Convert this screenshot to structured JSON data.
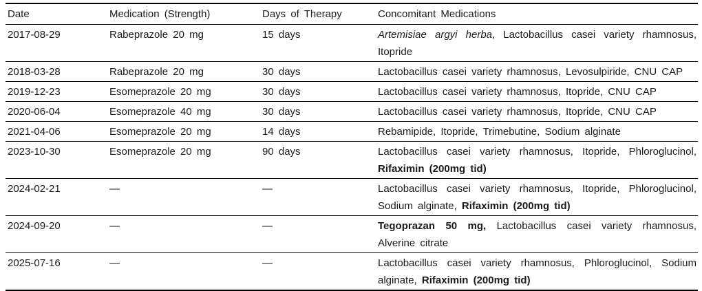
{
  "colors": {
    "text": "#1a1a1a",
    "rule": "#000000",
    "background": "#ffffff"
  },
  "table": {
    "empty_marker": "—",
    "columns": [
      {
        "key": "date",
        "label": "Date"
      },
      {
        "key": "medication",
        "label": "Medication (Strength)"
      },
      {
        "key": "days",
        "label": "Days of Therapy"
      },
      {
        "key": "concomitant",
        "label": "Concomitant Medications"
      }
    ],
    "rows": [
      {
        "date": "2017-08-29",
        "medication": "Rabeprazole 20 mg",
        "days": "15 days",
        "concomitant": [
          {
            "justify": true,
            "segments": [
              {
                "text": "Artemisiae argyi herba",
                "style": "italic"
              },
              {
                "text": ", Lactobacillus casei variety rhamnosus,",
                "style": "normal"
              }
            ]
          },
          {
            "justify": false,
            "segments": [
              {
                "text": "Itopride",
                "style": "normal"
              }
            ]
          }
        ]
      },
      {
        "date": "2018-03-28",
        "medication": "Rabeprazole 20 mg",
        "days": "30 days",
        "concomitant": [
          {
            "justify": false,
            "segments": [
              {
                "text": "Lactobacillus casei variety rhamnosus, Levosulpiride, CNU CAP",
                "style": "normal"
              }
            ]
          }
        ]
      },
      {
        "date": "2019-12-23",
        "medication": "Esomeprazole 20 mg",
        "days": "30 days",
        "concomitant": [
          {
            "justify": false,
            "segments": [
              {
                "text": "Lactobacillus casei variety rhamnosus, Itopride, CNU CAP",
                "style": "normal"
              }
            ]
          }
        ]
      },
      {
        "date": "2020-06-04",
        "medication": "Esomeprazole 40 mg",
        "days": "30 days",
        "concomitant": [
          {
            "justify": false,
            "segments": [
              {
                "text": "Lactobacillus casei variety rhamnosus, Itopride, CNU CAP",
                "style": "normal"
              }
            ]
          }
        ]
      },
      {
        "date": "2021-04-06",
        "medication": "Esomeprazole 20 mg",
        "days": "14 days",
        "concomitant": [
          {
            "justify": false,
            "segments": [
              {
                "text": "Rebamipide, Itopride, Trimebutine, Sodium alginate",
                "style": "normal"
              }
            ]
          }
        ]
      },
      {
        "date": "2023-10-30",
        "medication": "Esomeprazole 20 mg",
        "days": "90 days",
        "concomitant": [
          {
            "justify": true,
            "segments": [
              {
                "text": "Lactobacillus casei variety rhamnosus, Itopride, Phloroglucinol,",
                "style": "normal"
              }
            ]
          },
          {
            "justify": false,
            "segments": [
              {
                "text": "Rifaximin (200mg tid)",
                "style": "bold"
              }
            ]
          }
        ]
      },
      {
        "date": "2024-02-21",
        "medication": "—",
        "days": "—",
        "concomitant": [
          {
            "justify": true,
            "segments": [
              {
                "text": "Lactobacillus casei variety rhamnosus, Itopride, Phloroglucinol,",
                "style": "normal"
              }
            ]
          },
          {
            "justify": false,
            "segments": [
              {
                "text": "Sodium alginate, ",
                "style": "normal"
              },
              {
                "text": "Rifaximin (200mg tid)",
                "style": "bold"
              }
            ]
          }
        ]
      },
      {
        "date": "2024-09-20",
        "medication": "—",
        "days": "—",
        "concomitant": [
          {
            "justify": true,
            "segments": [
              {
                "text": "Tegoprazan 50 mg,",
                "style": "bold"
              },
              {
                "text": " Lactobacillus casei variety rhamnosus,",
                "style": "normal"
              }
            ]
          },
          {
            "justify": false,
            "segments": [
              {
                "text": "Alverine citrate",
                "style": "normal"
              }
            ]
          }
        ]
      },
      {
        "date": "2025-07-16",
        "medication": "—",
        "days": "—",
        "concomitant": [
          {
            "justify": true,
            "segments": [
              {
                "text": "Lactobacillus casei variety rhamnosus, Phloroglucinol, Sodium",
                "style": "normal"
              }
            ]
          },
          {
            "justify": false,
            "segments": [
              {
                "text": "alginate, ",
                "style": "normal"
              },
              {
                "text": "Rifaximin (200mg tid)",
                "style": "bold"
              }
            ]
          }
        ]
      }
    ]
  }
}
